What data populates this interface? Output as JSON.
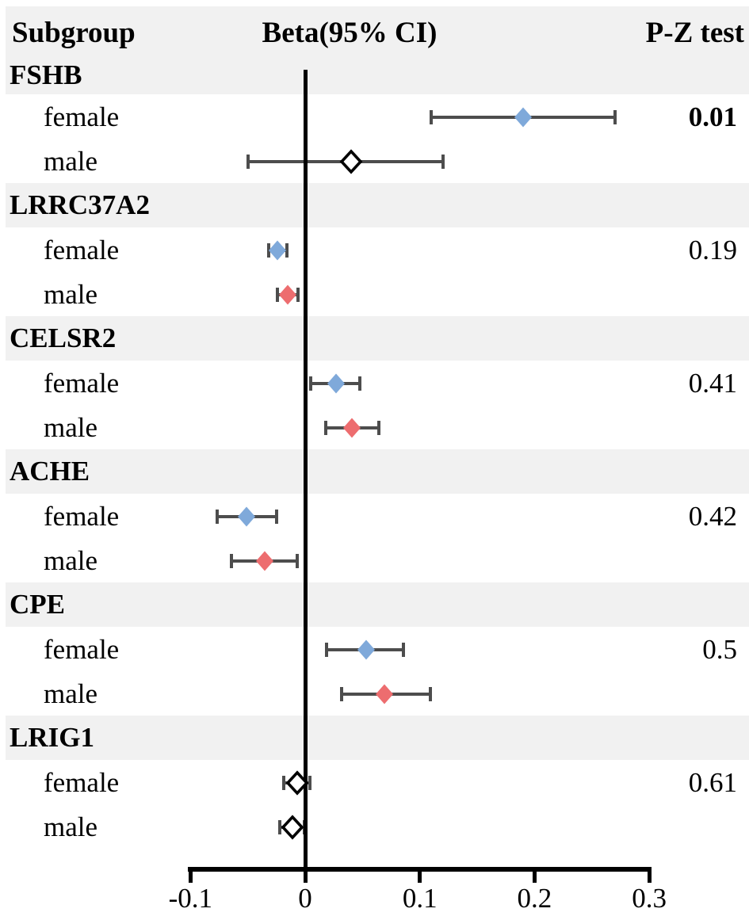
{
  "chart_data": {
    "type": "forest",
    "columns": {
      "subgroup": "Subgroup",
      "beta": "Beta(95% CI)",
      "pz": "P-Z test"
    },
    "x_ticks": [
      -0.1,
      0,
      0.1,
      0.2,
      0.3
    ],
    "x_tick_labels": [
      "-0.1",
      "0",
      "0.1",
      "0.2",
      "0.3"
    ],
    "xlim": [
      -0.1,
      0.3
    ],
    "zero_reference_line": 0,
    "legend_position": "none",
    "grid": false,
    "groups": [
      {
        "gene": "FSHB",
        "p": "0.01",
        "p_bold": true,
        "rows": [
          {
            "label": "female",
            "beta": 0.19,
            "ci_low": 0.11,
            "ci_high": 0.27,
            "marker": "filled-blue"
          },
          {
            "label": "male",
            "beta": 0.04,
            "ci_low": -0.05,
            "ci_high": 0.12,
            "marker": "open-diamond"
          }
        ]
      },
      {
        "gene": "LRRC37A2",
        "p": "0.19",
        "p_bold": false,
        "rows": [
          {
            "label": "female",
            "beta": -0.024,
            "ci_low": -0.032,
            "ci_high": -0.016,
            "marker": "filled-blue"
          },
          {
            "label": "male",
            "beta": -0.015,
            "ci_low": -0.024,
            "ci_high": -0.006,
            "marker": "filled-red"
          }
        ]
      },
      {
        "gene": "CELSR2",
        "p": "0.41",
        "p_bold": false,
        "rows": [
          {
            "label": "female",
            "beta": 0.027,
            "ci_low": 0.005,
            "ci_high": 0.048,
            "marker": "filled-blue"
          },
          {
            "label": "male",
            "beta": 0.041,
            "ci_low": 0.018,
            "ci_high": 0.064,
            "marker": "filled-red"
          }
        ]
      },
      {
        "gene": "ACHE",
        "p": "0.42",
        "p_bold": false,
        "rows": [
          {
            "label": "female",
            "beta": -0.051,
            "ci_low": -0.077,
            "ci_high": -0.025,
            "marker": "filled-blue"
          },
          {
            "label": "male",
            "beta": -0.035,
            "ci_low": -0.064,
            "ci_high": -0.007,
            "marker": "filled-red"
          }
        ]
      },
      {
        "gene": "CPE",
        "p": "0.5",
        "p_bold": false,
        "rows": [
          {
            "label": "female",
            "beta": 0.053,
            "ci_low": 0.019,
            "ci_high": 0.086,
            "marker": "filled-blue"
          },
          {
            "label": "male",
            "beta": 0.069,
            "ci_low": 0.032,
            "ci_high": 0.109,
            "marker": "filled-red"
          }
        ]
      },
      {
        "gene": "LRIG1",
        "p": "0.61",
        "p_bold": false,
        "rows": [
          {
            "label": "female",
            "beta": -0.007,
            "ci_low": -0.019,
            "ci_high": 0.004,
            "marker": "open-diamond"
          },
          {
            "label": "male",
            "beta": -0.011,
            "ci_low": -0.022,
            "ci_high": -0.001,
            "marker": "open-diamond"
          }
        ]
      }
    ],
    "colors": {
      "female_marker": "#7fa9da",
      "male_marker": "#ed6d6f",
      "open_marker_fill": "#ffffff",
      "marker_outline": "#000000",
      "ci_line": "#4d4d4d",
      "band_bg": "#f1f1f1",
      "axis": "#000000",
      "text": "#000000"
    }
  }
}
